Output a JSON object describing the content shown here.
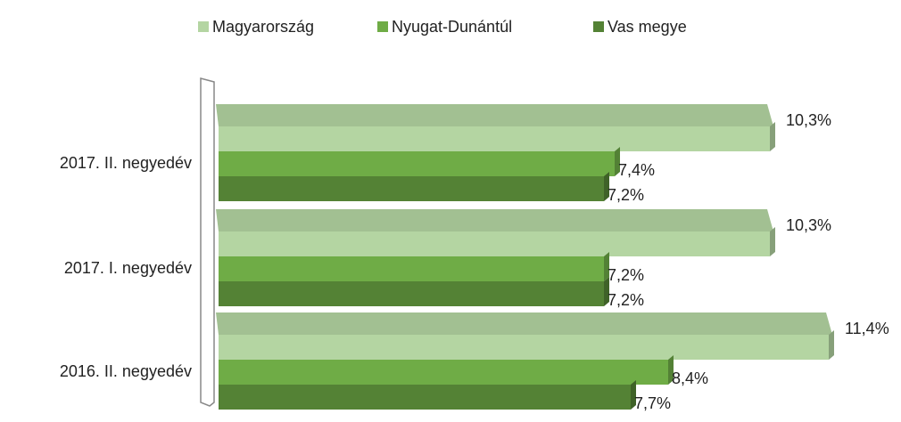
{
  "chart_data": {
    "type": "bar",
    "orientation": "horizontal",
    "categories": [
      "2017. II. negyedév",
      "2017. I. negyedév",
      "2016. II. negyedév"
    ],
    "series": [
      {
        "name": "Magyarország",
        "color": "#b4d5a2",
        "values": [
          10.3,
          10.3,
          11.4
        ],
        "value_labels": [
          "10,3%",
          "10,3%",
          "11,4%"
        ]
      },
      {
        "name": "Nyugat-Dunántúl",
        "color": "#6fac46",
        "values": [
          7.4,
          7.2,
          8.4
        ],
        "value_labels": [
          "7,4%",
          "7,2%",
          "8,4%"
        ]
      },
      {
        "name": "Vas megye",
        "color": "#548235",
        "values": [
          7.2,
          7.2,
          7.7
        ],
        "value_labels": [
          "7,2%",
          "7,2%",
          "7,7%"
        ]
      }
    ],
    "legend": "top"
  }
}
